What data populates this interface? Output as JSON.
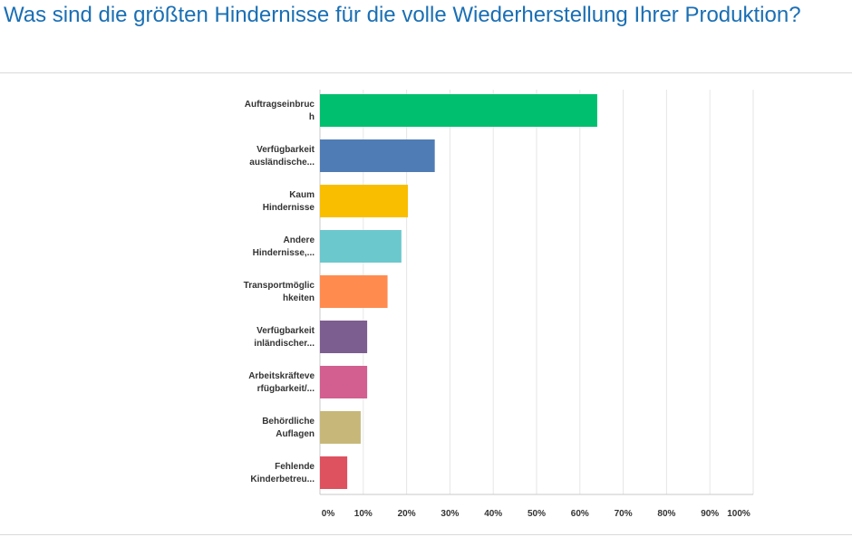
{
  "chart_data": {
    "type": "bar",
    "orientation": "horizontal",
    "title": "Was sind die größten Hindernisse für die volle Wiederherstellung Ihrer Produktion?",
    "categories": [
      [
        "Auftragseinbruc",
        "h"
      ],
      [
        "Verfügbarkeit",
        "ausländische..."
      ],
      [
        "Kaum",
        "Hindernisse"
      ],
      [
        "Andere",
        "Hindernisse,..."
      ],
      [
        "Transportmöglic",
        "hkeiten"
      ],
      [
        "Verfügbarkeit",
        "inländischer..."
      ],
      [
        "Arbeitskräfteve",
        "rfügbarkeit/..."
      ],
      [
        "Behördliche",
        "Auflagen"
      ],
      [
        "Fehlende",
        "Kinderbetreu..."
      ]
    ],
    "values": [
      64,
      26.5,
      20.3,
      18.8,
      15.6,
      10.9,
      10.9,
      9.4,
      6.3
    ],
    "colors": [
      "#00bf6f",
      "#507cb6",
      "#f9be00",
      "#6bc8cd",
      "#ff8b4f",
      "#7d5e90",
      "#d25f90",
      "#c7b879",
      "#de5260"
    ],
    "xlim": [
      0,
      100
    ],
    "xticks": [
      "0%",
      "10%",
      "20%",
      "30%",
      "40%",
      "50%",
      "60%",
      "70%",
      "80%",
      "90%",
      "100%"
    ],
    "grid": true,
    "legend": "none"
  }
}
